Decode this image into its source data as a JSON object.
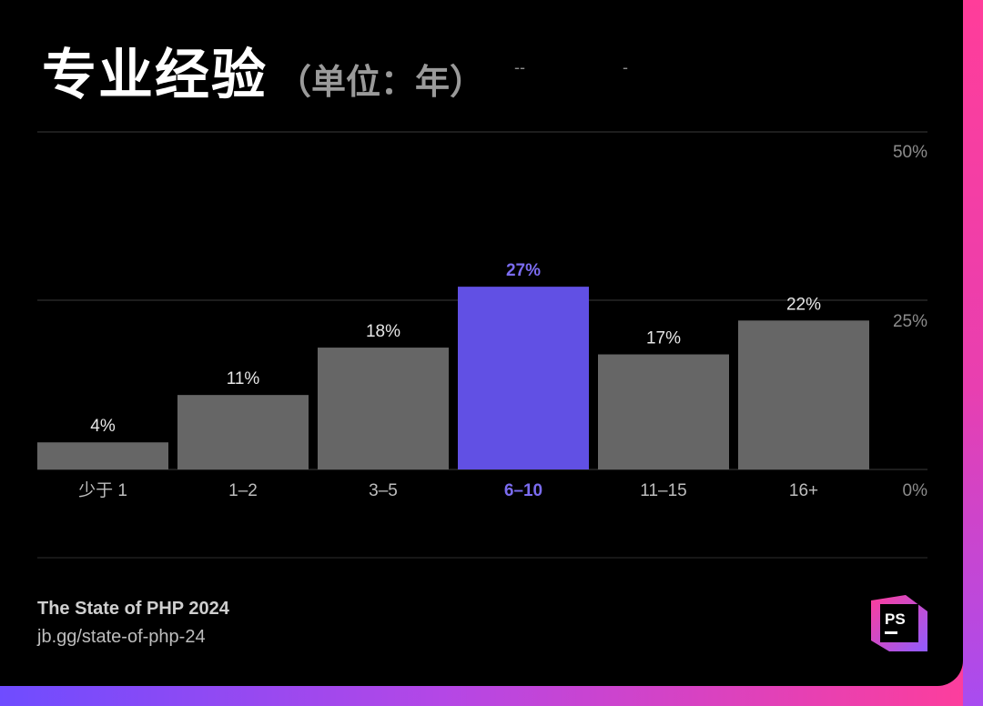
{
  "header": {
    "title": "专业经验",
    "subtitle": "（单位：年）",
    "dash_a": "--",
    "dash_b": "-"
  },
  "chart_data": {
    "type": "bar",
    "categories": [
      "少于 1",
      "1–2",
      "3–5",
      "6–10",
      "11–15",
      "16+"
    ],
    "values": [
      4,
      11,
      18,
      27,
      17,
      22
    ],
    "value_labels": [
      "4%",
      "11%",
      "18%",
      "27%",
      "17%",
      "22%"
    ],
    "highlight_index": 3,
    "y_ticks": [
      "0%",
      "25%",
      "50%"
    ],
    "ylim": [
      0,
      50
    ],
    "grid": true,
    "colors": {
      "bar": "#666666",
      "highlight": "#6150e4",
      "grid": "#3a3a3a",
      "label": "#e6e6e6",
      "tick": "#8c8c8c"
    }
  },
  "footer": {
    "line1": "The State of PHP 2024",
    "line2": "jb.gg/state-of-php-24"
  },
  "logo": {
    "text": "PS",
    "icon": "phpstorm-logo-icon"
  }
}
